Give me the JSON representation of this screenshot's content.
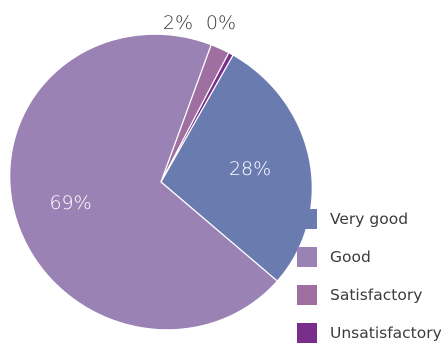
{
  "chart_data": {
    "type": "pie",
    "title": "",
    "categories": [
      "Very good",
      "Good",
      "Satisfactory",
      "Unsatisfactory"
    ],
    "values": [
      28,
      69,
      2,
      0.5
    ],
    "value_labels": [
      "28%",
      "69%",
      "2%",
      "0%"
    ],
    "series": [
      {
        "name": "",
        "values": [
          28,
          69,
          2,
          0.5
        ]
      }
    ],
    "colors": [
      "#6a7bb0",
      "#9b82b5",
      "#9e6fa0",
      "#7a2e8c"
    ],
    "label_colors": [
      "#ffffff",
      "#ffffff",
      "#3b3b3b",
      "#3b3b3b"
    ],
    "legend": {
      "position": "bottom-right",
      "entries": [
        "Very good",
        "Good",
        "Satisfactory",
        "Unsatisfactory"
      ]
    },
    "start_angle": "top",
    "direction": "clockwise"
  }
}
